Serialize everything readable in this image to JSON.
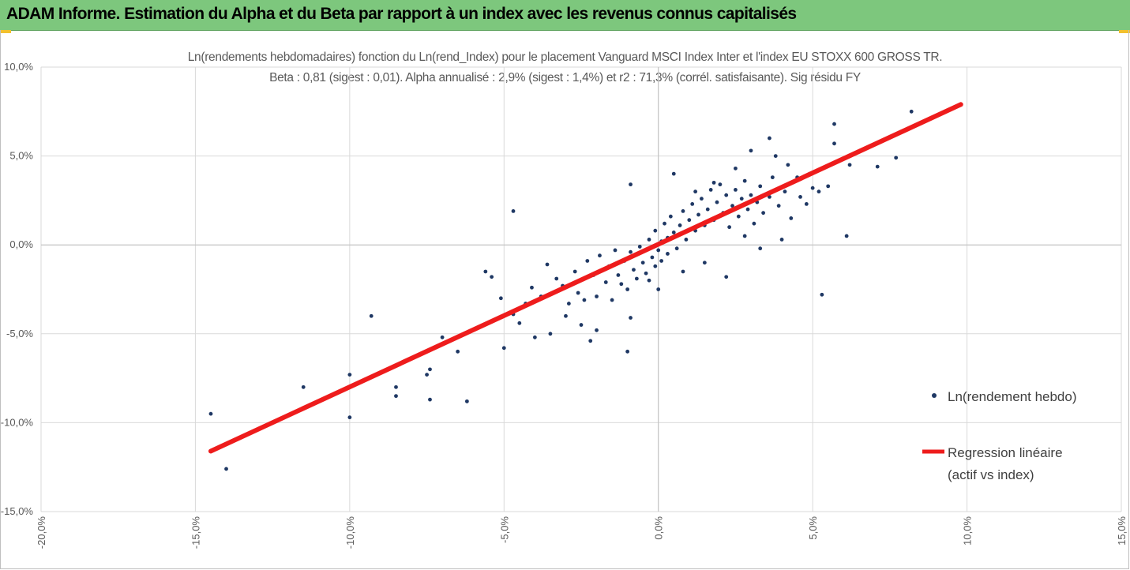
{
  "header": {
    "title": "ADAM Informe. Estimation du Alpha et du Beta par rapport à un index avec les revenus connus capitalisés",
    "background": "#7dc77d",
    "accent": "#f2c12e"
  },
  "chart_data": {
    "type": "scatter",
    "title": "Ln(rendements hebdomadaires) fonction du Ln(rend_Index) pour le placement Vanguard MSCI Index Inter et l'index EU STOXX 600 GROSS TR.",
    "subtitle": "Beta : 0,81 (sigest : 0,01). Alpha annualisé : 2,9% (sigest : 1,4%) et r2 : 71,3% (corrél. satisfaisante). Sig résidu FY",
    "xlim": [
      -0.2,
      0.15
    ],
    "ylim": [
      -0.15,
      0.1
    ],
    "x_ticks": [
      "-20,0%",
      "-15,0%",
      "-10,0%",
      "-5,0%",
      "0,0%",
      "5,0%",
      "10,0%",
      "15,0%"
    ],
    "y_ticks": [
      "10,0%",
      "5,0%",
      "0,0%",
      "-5,0%",
      "-10,0%",
      "-15,0%"
    ],
    "grid": true,
    "legend_position": "right",
    "series": [
      {
        "name": "Ln(rendement hebdo)",
        "kind": "points",
        "color": "#1f3864",
        "points": [
          [
            -0.145,
            -0.095
          ],
          [
            -0.14,
            -0.126
          ],
          [
            -0.115,
            -0.08
          ],
          [
            -0.1,
            -0.073
          ],
          [
            -0.1,
            -0.097
          ],
          [
            -0.093,
            -0.04
          ],
          [
            -0.085,
            -0.08
          ],
          [
            -0.085,
            -0.085
          ],
          [
            -0.075,
            -0.073
          ],
          [
            -0.074,
            -0.07
          ],
          [
            -0.074,
            -0.087
          ],
          [
            -0.07,
            -0.052
          ],
          [
            -0.065,
            -0.06
          ],
          [
            -0.062,
            -0.088
          ],
          [
            -0.05,
            -0.058
          ],
          [
            -0.047,
            0.019
          ],
          [
            -0.045,
            -0.044
          ],
          [
            -0.04,
            -0.052
          ],
          [
            -0.035,
            -0.05
          ],
          [
            -0.03,
            -0.04
          ],
          [
            -0.025,
            -0.045
          ],
          [
            -0.022,
            -0.054
          ],
          [
            -0.02,
            -0.048
          ],
          [
            -0.01,
            -0.06
          ],
          [
            -0.009,
            -0.041
          ],
          [
            -0.009,
            0.034
          ],
          [
            -0.003,
            -0.02
          ],
          [
            0.0,
            -0.025
          ],
          [
            0.005,
            0.04
          ],
          [
            0.008,
            -0.015
          ],
          [
            0.012,
            0.03
          ],
          [
            0.015,
            -0.01
          ],
          [
            0.018,
            0.035
          ],
          [
            0.022,
            -0.018
          ],
          [
            0.025,
            0.043
          ],
          [
            0.028,
            0.005
          ],
          [
            0.03,
            0.053
          ],
          [
            0.033,
            -0.002
          ],
          [
            0.036,
            0.06
          ],
          [
            0.038,
            0.05
          ],
          [
            0.04,
            0.003
          ],
          [
            0.042,
            0.045
          ],
          [
            0.045,
            0.038
          ],
          [
            0.048,
            0.023
          ],
          [
            0.05,
            0.032
          ],
          [
            0.053,
            -0.028
          ],
          [
            0.055,
            0.033
          ],
          [
            0.057,
            0.068
          ],
          [
            0.057,
            0.057
          ],
          [
            0.061,
            0.005
          ],
          [
            0.062,
            0.045
          ],
          [
            0.071,
            0.044
          ],
          [
            0.077,
            0.049
          ],
          [
            0.082,
            0.075
          ],
          [
            -0.056,
            -0.015
          ],
          [
            -0.054,
            -0.018
          ],
          [
            -0.051,
            -0.03
          ],
          [
            -0.047,
            -0.039
          ],
          [
            -0.043,
            -0.033
          ],
          [
            -0.041,
            -0.024
          ],
          [
            -0.038,
            -0.029
          ],
          [
            -0.036,
            -0.011
          ],
          [
            -0.033,
            -0.019
          ],
          [
            -0.031,
            -0.023
          ],
          [
            -0.029,
            -0.033
          ],
          [
            -0.027,
            -0.015
          ],
          [
            -0.026,
            -0.027
          ],
          [
            -0.024,
            -0.031
          ],
          [
            -0.023,
            -0.009
          ],
          [
            -0.021,
            -0.017
          ],
          [
            -0.02,
            -0.029
          ],
          [
            -0.019,
            -0.006
          ],
          [
            -0.017,
            -0.021
          ],
          [
            -0.016,
            -0.012
          ],
          [
            -0.015,
            -0.031
          ],
          [
            -0.014,
            -0.003
          ],
          [
            -0.013,
            -0.017
          ],
          [
            -0.012,
            -0.022
          ],
          [
            -0.011,
            -0.009
          ],
          [
            -0.01,
            -0.025
          ],
          [
            -0.009,
            -0.004
          ],
          [
            -0.008,
            -0.014
          ],
          [
            -0.007,
            -0.019
          ],
          [
            -0.006,
            -0.001
          ],
          [
            -0.005,
            -0.01
          ],
          [
            -0.004,
            -0.016
          ],
          [
            -0.003,
            0.003
          ],
          [
            -0.002,
            -0.007
          ],
          [
            -0.001,
            -0.012
          ],
          [
            -0.001,
            0.008
          ],
          [
            0.0,
            -0.003
          ],
          [
            0.001,
            0.002
          ],
          [
            0.001,
            -0.009
          ],
          [
            0.002,
            0.012
          ],
          [
            0.003,
            0.004
          ],
          [
            0.003,
            -0.005
          ],
          [
            0.004,
            0.016
          ],
          [
            0.005,
            0.007
          ],
          [
            0.006,
            -0.002
          ],
          [
            0.007,
            0.011
          ],
          [
            0.008,
            0.019
          ],
          [
            0.009,
            0.003
          ],
          [
            0.01,
            0.014
          ],
          [
            0.011,
            0.023
          ],
          [
            0.012,
            0.008
          ],
          [
            0.013,
            0.017
          ],
          [
            0.014,
            0.026
          ],
          [
            0.015,
            0.011
          ],
          [
            0.016,
            0.02
          ],
          [
            0.017,
            0.031
          ],
          [
            0.018,
            0.014
          ],
          [
            0.019,
            0.024
          ],
          [
            0.02,
            0.034
          ],
          [
            0.021,
            0.018
          ],
          [
            0.022,
            0.028
          ],
          [
            0.023,
            0.01
          ],
          [
            0.024,
            0.022
          ],
          [
            0.025,
            0.031
          ],
          [
            0.026,
            0.016
          ],
          [
            0.027,
            0.026
          ],
          [
            0.028,
            0.036
          ],
          [
            0.029,
            0.02
          ],
          [
            0.03,
            0.028
          ],
          [
            0.031,
            0.012
          ],
          [
            0.032,
            0.024
          ],
          [
            0.033,
            0.033
          ],
          [
            0.034,
            0.018
          ],
          [
            0.036,
            0.027
          ],
          [
            0.037,
            0.038
          ],
          [
            0.039,
            0.022
          ],
          [
            0.041,
            0.03
          ],
          [
            0.043,
            0.015
          ],
          [
            0.046,
            0.027
          ],
          [
            0.049,
            0.04
          ],
          [
            0.052,
            0.03
          ]
        ]
      },
      {
        "name": "Regression linéaire (actif vs index)",
        "kind": "line",
        "color": "#ee1c1c",
        "x": [
          -0.145,
          0.098
        ],
        "y": [
          -0.116,
          0.079
        ]
      }
    ]
  }
}
